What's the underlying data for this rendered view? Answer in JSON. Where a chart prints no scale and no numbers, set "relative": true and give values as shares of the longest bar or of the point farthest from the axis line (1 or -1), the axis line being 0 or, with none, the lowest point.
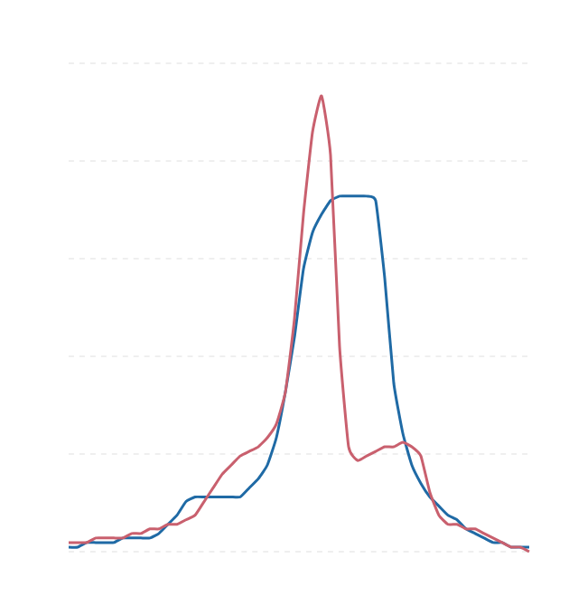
{
  "chart_data": {
    "type": "line",
    "relative": true,
    "grid": "y",
    "categories": [
      null,
      null,
      null,
      null,
      null,
      null,
      null,
      null,
      null,
      null,
      null,
      null,
      null,
      null,
      null,
      null,
      null,
      null,
      null,
      null,
      null,
      null,
      null,
      null,
      null,
      null,
      null,
      null,
      null,
      null,
      null,
      null,
      null,
      null,
      null,
      null,
      null,
      null,
      null,
      null,
      null,
      null,
      null,
      null,
      null,
      null,
      null,
      null,
      null,
      null,
      null,
      null
    ],
    "series": [
      {
        "color": "#1f6aa5",
        "values": [
          0.01,
          0.01,
          0.02,
          0.02,
          0.02,
          0.02,
          0.03,
          0.03,
          0.03,
          0.03,
          0.04,
          0.06,
          0.08,
          0.11,
          0.12,
          0.12,
          0.12,
          0.12,
          0.12,
          0.12,
          0.14,
          0.16,
          0.19,
          0.25,
          0.35,
          0.47,
          0.62,
          0.7,
          0.74,
          0.77,
          0.78,
          0.78,
          0.78,
          0.78,
          0.77,
          0.6,
          0.37,
          0.26,
          0.19,
          0.15,
          0.12,
          0.1,
          0.08,
          0.07,
          0.05,
          0.04,
          0.03,
          0.02,
          0.02,
          0.01,
          0.01,
          0.01
        ]
      },
      {
        "color": "#c9606e",
        "values": [
          0.02,
          0.02,
          0.02,
          0.03,
          0.03,
          0.03,
          0.03,
          0.04,
          0.04,
          0.05,
          0.05,
          0.06,
          0.06,
          0.07,
          0.08,
          0.11,
          0.14,
          0.17,
          0.19,
          0.21,
          0.22,
          0.23,
          0.25,
          0.28,
          0.35,
          0.51,
          0.74,
          0.92,
          1,
          0.87,
          0.45,
          0.23,
          0.2,
          0.21,
          0.22,
          0.23,
          0.23,
          0.24,
          0.23,
          0.21,
          0.13,
          0.08,
          0.06,
          0.06,
          0.05,
          0.05,
          0.04,
          0.03,
          0.02,
          0.01,
          0.01,
          0.0
        ]
      }
    ]
  }
}
